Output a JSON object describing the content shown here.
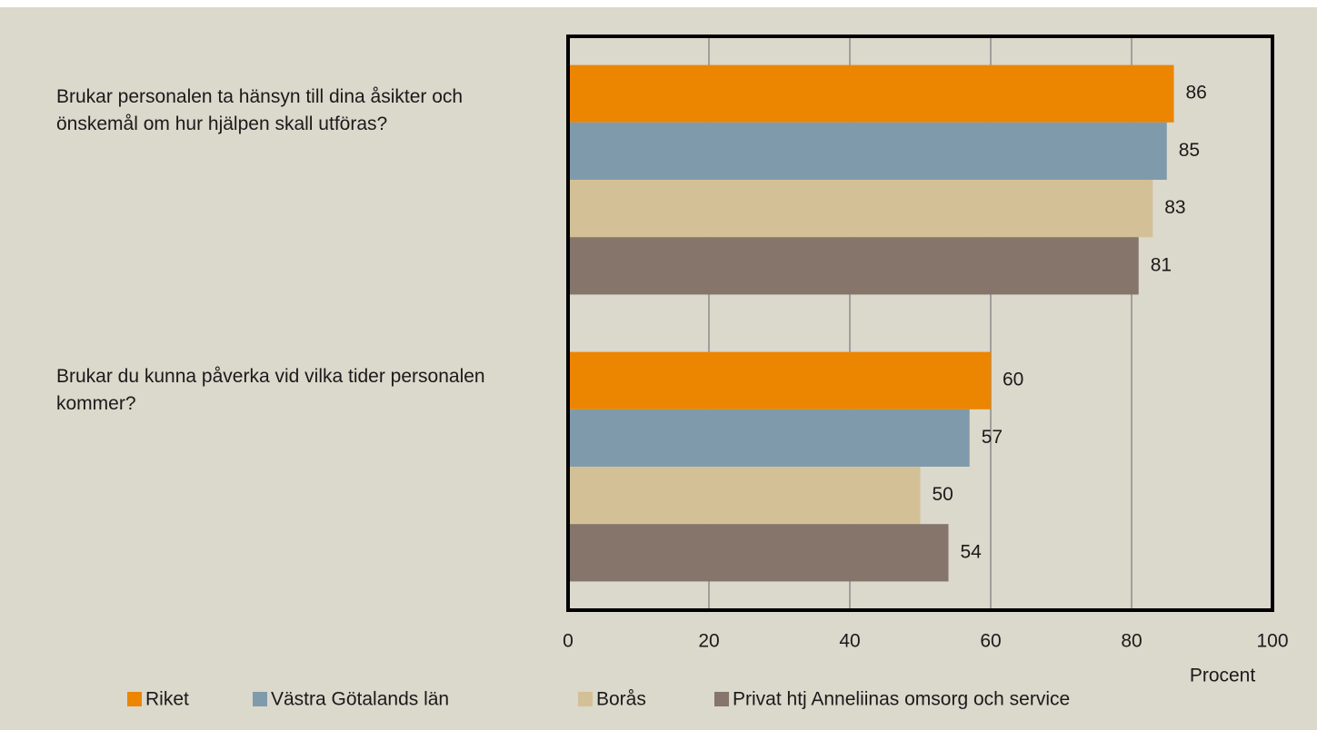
{
  "chart_data": {
    "type": "bar",
    "orientation": "horizontal",
    "categories": [
      "Brukar personalen ta hänsyn till dina åsikter och önskemål om hur hjälpen skall utföras?",
      "Brukar du kunna påverka vid vilka tider personalen kommer?"
    ],
    "series": [
      {
        "name": "Riket",
        "color": "#ec8500",
        "values": [
          86,
          60
        ]
      },
      {
        "name": "Västra Götalands län",
        "color": "#7f9bab",
        "values": [
          85,
          57
        ]
      },
      {
        "name": "Borås",
        "color": "#d4c096",
        "values": [
          83,
          50
        ]
      },
      {
        "name": "Privat htj Anneliinas omsorg och service",
        "color": "#85756a",
        "values": [
          81,
          54
        ]
      }
    ],
    "xlim": [
      0,
      100
    ],
    "xticks": [
      0,
      20,
      40,
      60,
      80,
      100
    ],
    "xlabel": "Procent",
    "grid": true,
    "legend": "bottom"
  }
}
